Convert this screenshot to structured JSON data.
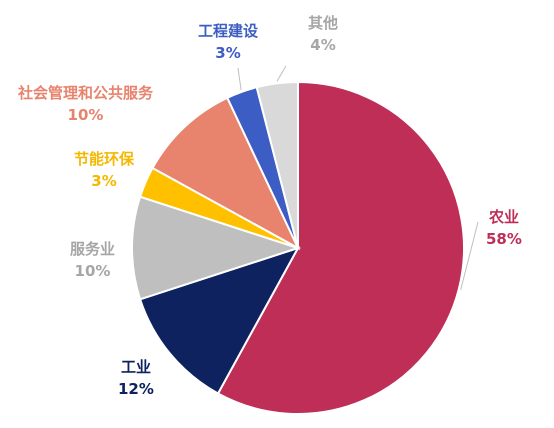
{
  "chart_data": {
    "type": "pie",
    "title": "",
    "slices": [
      {
        "label": "农业",
        "value": 58,
        "value_text": "58%",
        "color": "#BE2E56"
      },
      {
        "label": "工业",
        "value": 12,
        "value_text": "12%",
        "color": "#0E2260"
      },
      {
        "label": "服务业",
        "value": 10,
        "value_text": "10%",
        "color": "#BFBFBF"
      },
      {
        "label": "节能环保",
        "value": 3,
        "value_text": "3%",
        "color": "#FFC000"
      },
      {
        "label": "社会管理和公共服务",
        "value": 10,
        "value_text": "10%",
        "color": "#E8836E"
      },
      {
        "label": "工程建设",
        "value": 3,
        "value_text": "3%",
        "color": "#3C5DC4"
      },
      {
        "label": "其他",
        "value": 4,
        "value_text": "4%",
        "color": "#D9D9D9"
      }
    ],
    "label_colors": {
      "农业": "#BE2E56",
      "工业": "#0E2260",
      "服务业": "#A6A6A6",
      "节能环保": "#F5B800",
      "社会管理和公共服务": "#E8836E",
      "工程建设": "#3C5DC4",
      "其他": "#A6A6A6"
    },
    "legend": "none"
  }
}
